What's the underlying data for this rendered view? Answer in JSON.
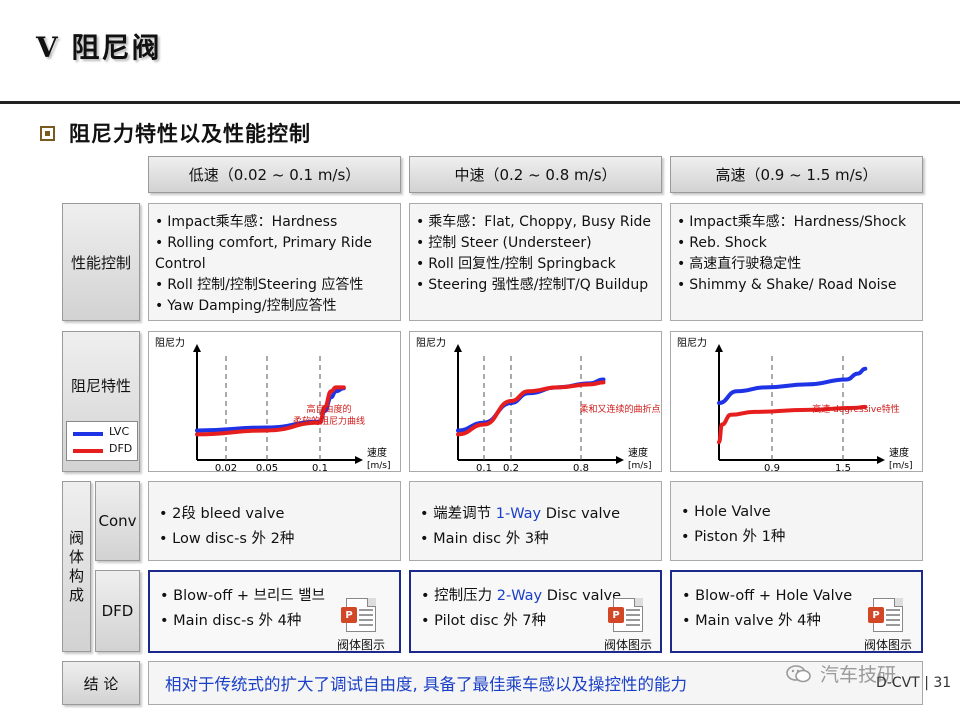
{
  "page": {
    "title": "V 阻尼阀",
    "subtitle": "阻尼力特性以及性能控制",
    "page_label": "D-CVT",
    "page_number": "| 31",
    "watermark": "汽车技研"
  },
  "columns": [
    {
      "label": "低速（0.02 ~ 0.1 m/s）"
    },
    {
      "label": "中速（0.2 ~ 0.8 m/s）"
    },
    {
      "label": "高速（0.9 ~ 1.5 m/s）"
    }
  ],
  "rows": {
    "performance": "性能控制",
    "characteristics": "阻尼特性",
    "valve_body": "阀体构成",
    "conv": "Conv",
    "dfd": "DFD",
    "conclusion_label": "结  论"
  },
  "performance": [
    [
      "Impact乘车感：Hardness",
      "Rolling comfort, Primary Ride",
      "Control",
      "Roll 控制/控制Steering 应答性",
      "Yaw Damping/控制应答性"
    ],
    [
      "乘车感：Flat, Choppy, Busy Ride",
      "控制 Steer (Understeer)",
      "Roll 回复性/控制 Springback",
      "Steering 强性感/控制T/Q Buildup"
    ],
    [
      "Impact乘车感：Hardness/Shock",
      "Reb. Shock",
      "高速直行驶稳定性",
      "Shimmy & Shake/ Road Noise"
    ]
  ],
  "legend": {
    "lvc": "LVC",
    "dfd": "DFD",
    "lvc_color": "#1e32e6",
    "dfd_color": "#e61e1e"
  },
  "chart_data": [
    {
      "type": "line",
      "ylabel": "阻尼力",
      "xlabel": "速度",
      "xunit": "[m/s]",
      "x_ticks": [
        "0.02",
        "0.05",
        "0.1"
      ],
      "annotation": "高自由度的柔软的阻尼力曲线",
      "annotation_lines": [
        "高自由度的",
        "柔软的阻尼力曲线"
      ],
      "series": [
        {
          "name": "LVC",
          "x": [
            0,
            0.05,
            0.1,
            0.13,
            0.17,
            0.2,
            0.25
          ],
          "y": [
            0.22,
            0.25,
            0.31,
            0.42,
            0.56,
            0.62,
            0.65
          ]
        },
        {
          "name": "DFD",
          "x": [
            0,
            0.05,
            0.1,
            0.13,
            0.17,
            0.2,
            0.25
          ],
          "y": [
            0.18,
            0.22,
            0.3,
            0.46,
            0.62,
            0.66,
            0.66
          ]
        }
      ]
    },
    {
      "type": "line",
      "ylabel": "阻尼力",
      "xlabel": "速度",
      "xunit": "[m/s]",
      "x_ticks": [
        "0.1",
        "0.2",
        "0.8"
      ],
      "annotation": "柔和又连续的曲折点",
      "annotation_lines": [
        "柔和又连续的曲折点"
      ],
      "series": [
        {
          "name": "LVC",
          "x": [
            0,
            0.1,
            0.2,
            0.35,
            0.6,
            0.9,
            1.05
          ],
          "y": [
            0.22,
            0.3,
            0.5,
            0.6,
            0.66,
            0.7,
            0.74
          ]
        },
        {
          "name": "DFD",
          "x": [
            0,
            0.1,
            0.2,
            0.35,
            0.6,
            0.9,
            1.05
          ],
          "y": [
            0.18,
            0.28,
            0.52,
            0.62,
            0.66,
            0.69,
            0.71
          ]
        }
      ]
    },
    {
      "type": "line",
      "ylabel": "阻尼力",
      "xlabel": "速度",
      "xunit": "[m/s]",
      "x_ticks": [
        "0.9",
        "1.5"
      ],
      "annotation": "高速 degressive特性",
      "annotation_lines": [
        "高速 degressive特性"
      ],
      "series": [
        {
          "name": "LVC",
          "x": [
            0,
            0.3,
            0.8,
            1.2,
            1.6,
            1.9,
            2.1
          ],
          "y": [
            0.5,
            0.62,
            0.66,
            0.69,
            0.74,
            0.8,
            0.85
          ]
        },
        {
          "name": "DFD",
          "x": [
            0,
            0.05,
            0.2,
            0.6,
            1.2,
            1.8,
            2.1
          ],
          "y": [
            0.1,
            0.28,
            0.38,
            0.41,
            0.43,
            0.45,
            0.46
          ]
        }
      ]
    }
  ],
  "conv": [
    {
      "prefix": "2段 bleed valve",
      "highlight": "",
      "suffix": "",
      "line2": "Low disc-s 外 2种"
    },
    {
      "prefix": "端差调节 ",
      "highlight": "1-Way",
      "suffix": " Disc valve",
      "line2": "Main disc 外 3种"
    },
    {
      "prefix": "Hole Valve",
      "highlight": "",
      "suffix": "",
      "line2": "Piston 外 1种"
    }
  ],
  "dfd": [
    {
      "prefix": "Blow-off + 브리드 밸브",
      "highlight": "",
      "suffix": "",
      "line2": "Main disc-s 外 4种",
      "icon_caption": "阀体图示"
    },
    {
      "prefix": "控制压力 ",
      "highlight": "2-Way",
      "suffix": " Disc valve",
      "line2": "Pilot disc 外 7种",
      "icon_caption": "阀体图示"
    },
    {
      "prefix": "Blow-off + Hole Valve",
      "highlight": "",
      "suffix": "",
      "line2": "Main valve 外 4种",
      "icon_caption": "阀体图示"
    }
  ],
  "conclusion": "相对于传统式的扩大了调试自由度, 具备了最佳乘车感以及操控性的能力"
}
